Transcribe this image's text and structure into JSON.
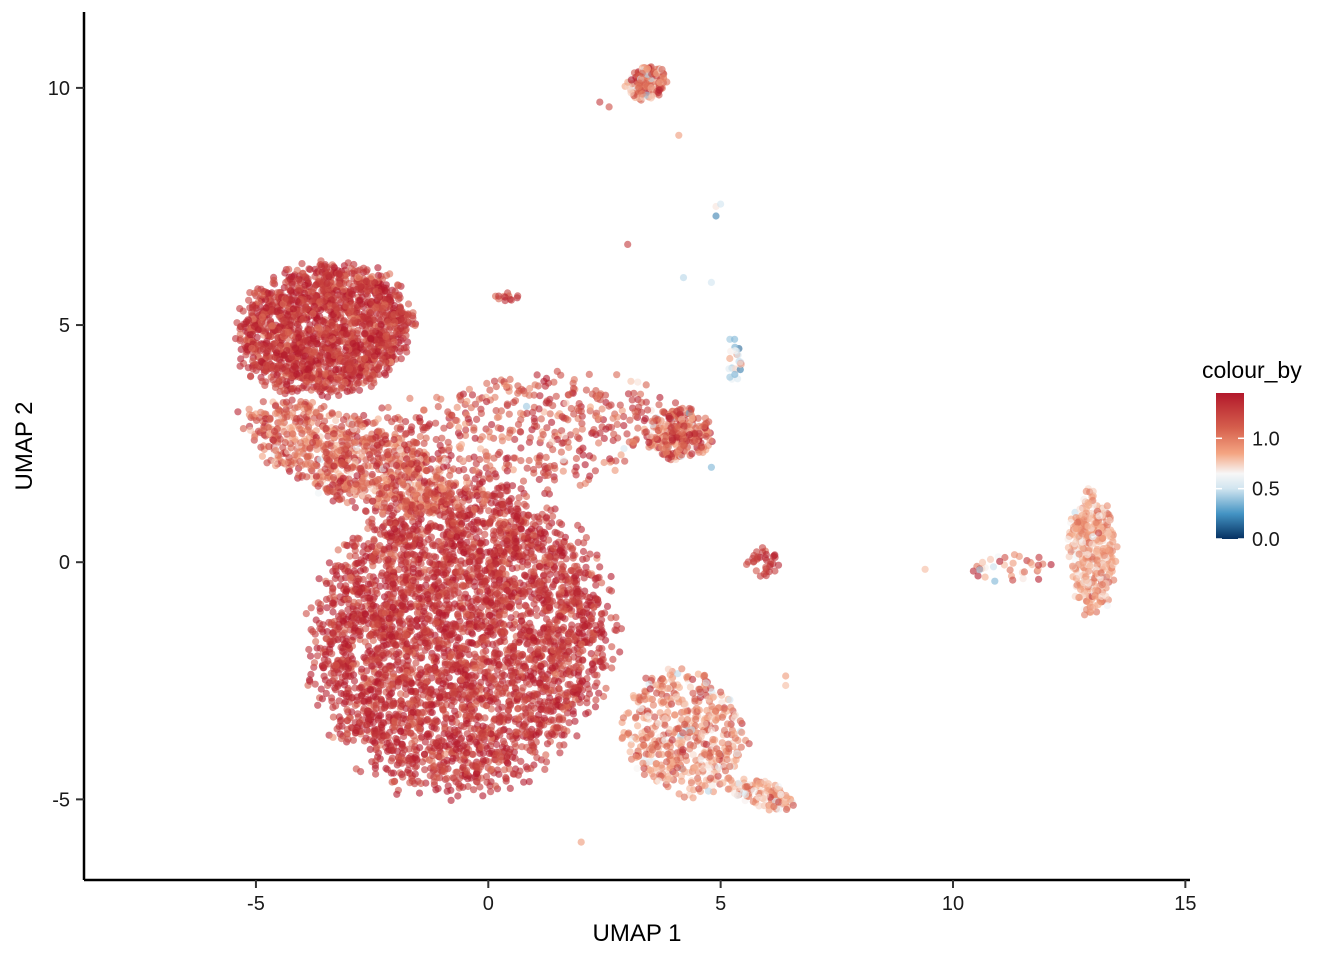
{
  "chart_data": {
    "type": "scatter",
    "title": "",
    "xlabel": "UMAP 1",
    "ylabel": "UMAP 2",
    "xlim": [
      -8.7,
      15.1
    ],
    "ylim": [
      -6.7,
      11.6
    ],
    "x_ticks": [
      {
        "value": -5,
        "label": "-5"
      },
      {
        "value": 0,
        "label": "0"
      },
      {
        "value": 5,
        "label": "5"
      },
      {
        "value": 10,
        "label": "10"
      },
      {
        "value": 15,
        "label": "15"
      }
    ],
    "y_ticks": [
      {
        "value": -5,
        "label": "-5"
      },
      {
        "value": 0,
        "label": "0"
      },
      {
        "value": 5,
        "label": "5"
      },
      {
        "value": 10,
        "label": "10"
      }
    ],
    "grid": false,
    "point_opacity": 0.6,
    "colour_scale": {
      "title": "colour_by",
      "palette": "RdBu (reversed)",
      "domain": [
        0,
        1.45
      ],
      "stops": [
        {
          "value": 0.0,
          "color": "#053061"
        },
        {
          "value": 0.25,
          "color": "#4393c3"
        },
        {
          "value": 0.5,
          "color": "#d1e5f0"
        },
        {
          "value": 0.65,
          "color": "#f7f7f7"
        },
        {
          "value": 0.85,
          "color": "#f4a582"
        },
        {
          "value": 1.1,
          "color": "#d6604d"
        },
        {
          "value": 1.45,
          "color": "#b2182b"
        }
      ],
      "breaks": [
        {
          "value": 0.0,
          "label": "0.0"
        },
        {
          "value": 0.5,
          "label": "0.5"
        },
        {
          "value": 1.0,
          "label": "1.0"
        }
      ],
      "legend_position": "right"
    },
    "clusters": [
      {
        "name": "",
        "shape": "ellipse",
        "center": [
          -3.5,
          4.9
        ],
        "spread": [
          1.9,
          1.35
        ],
        "rotation_deg": 8,
        "count": 1700,
        "colour_mean": 1.3,
        "colour_sd": 0.14
      },
      {
        "name": "",
        "shape": "ellipse",
        "center": [
          -0.6,
          -1.6
        ],
        "spread": [
          3.1,
          3.3
        ],
        "rotation_deg": -35,
        "count": 3800,
        "colour_mean": 1.32,
        "colour_sd": 0.13
      },
      {
        "name": "",
        "shape": "ellipse",
        "center": [
          -3.0,
          2.2
        ],
        "spread": [
          2.4,
          0.9
        ],
        "rotation_deg": -20,
        "count": 700,
        "colour_mean": 1.1,
        "colour_sd": 0.2
      },
      {
        "name": "",
        "shape": "ellipse",
        "center": [
          4.2,
          -3.6
        ],
        "spread": [
          1.4,
          1.2
        ],
        "rotation_deg": -40,
        "count": 500,
        "colour_mean": 0.95,
        "colour_sd": 0.2
      },
      {
        "name": "",
        "shape": "ellipse",
        "center": [
          5.9,
          -4.9
        ],
        "spread": [
          0.75,
          0.3
        ],
        "rotation_deg": -15,
        "count": 110,
        "colour_mean": 0.88,
        "colour_sd": 0.18
      },
      {
        "name": "",
        "shape": "ellipse",
        "center": [
          13.0,
          0.2
        ],
        "spread": [
          0.5,
          1.3
        ],
        "rotation_deg": 0,
        "count": 380,
        "colour_mean": 0.85,
        "colour_sd": 0.15
      },
      {
        "name": "",
        "shape": "ellipse",
        "center": [
          11.3,
          -0.1
        ],
        "spread": [
          1.0,
          0.3
        ],
        "rotation_deg": 0,
        "count": 35,
        "colour_mean": 0.95,
        "colour_sd": 0.3
      },
      {
        "name": "",
        "shape": "ellipse",
        "center": [
          4.1,
          2.7
        ],
        "spread": [
          0.7,
          0.55
        ],
        "rotation_deg": 0,
        "count": 260,
        "colour_mean": 1.1,
        "colour_sd": 0.25
      },
      {
        "name": "",
        "shape": "ellipse",
        "center": [
          3.4,
          10.1
        ],
        "spread": [
          0.45,
          0.35
        ],
        "rotation_deg": 25,
        "count": 130,
        "colour_mean": 1.0,
        "colour_sd": 0.25
      },
      {
        "name": "",
        "shape": "ellipse",
        "center": [
          5.9,
          0.0
        ],
        "spread": [
          0.35,
          0.3
        ],
        "rotation_deg": 0,
        "count": 35,
        "colour_mean": 1.3,
        "colour_sd": 0.1
      },
      {
        "name": "",
        "shape": "ellipse",
        "center": [
          5.3,
          4.2
        ],
        "spread": [
          0.15,
          0.4
        ],
        "rotation_deg": 0,
        "count": 22,
        "colour_mean": 0.55,
        "colour_sd": 0.25
      },
      {
        "name": "",
        "shape": "ellipse",
        "center": [
          0.4,
          5.6
        ],
        "spread": [
          0.25,
          0.1
        ],
        "rotation_deg": 0,
        "count": 12,
        "colour_mean": 1.25,
        "colour_sd": 0.1
      },
      {
        "name": "",
        "shape": "ellipse",
        "center": [
          0.0,
          2.5
        ],
        "spread": [
          4.0,
          1.3
        ],
        "rotation_deg": 10,
        "count": 600,
        "colour_mean": 1.2,
        "colour_sd": 0.2
      }
    ],
    "sparse_points": [
      [
        4.9,
        7.5,
        0.7
      ],
      [
        5.0,
        7.55,
        0.5
      ],
      [
        4.9,
        7.3,
        0.2
      ],
      [
        4.2,
        6.0,
        0.45
      ],
      [
        4.8,
        5.9,
        0.5
      ],
      [
        3.0,
        6.7,
        1.3
      ],
      [
        5.2,
        4.7,
        0.4
      ],
      [
        5.3,
        4.7,
        0.35
      ],
      [
        4.8,
        2.0,
        0.35
      ],
      [
        5.2,
        3.9,
        0.4
      ],
      [
        6.4,
        -2.4,
        0.9
      ],
      [
        6.4,
        -2.6,
        0.8
      ],
      [
        5.2,
        -2.9,
        0.5
      ],
      [
        9.4,
        -0.15,
        0.8
      ],
      [
        10.9,
        -0.4,
        0.35
      ],
      [
        4.1,
        9.0,
        0.9
      ],
      [
        2.4,
        9.7,
        1.3
      ],
      [
        2.6,
        9.6,
        1.2
      ],
      [
        2.0,
        -5.9,
        0.9
      ],
      [
        6.5,
        -5.0,
        0.85
      ]
    ]
  }
}
